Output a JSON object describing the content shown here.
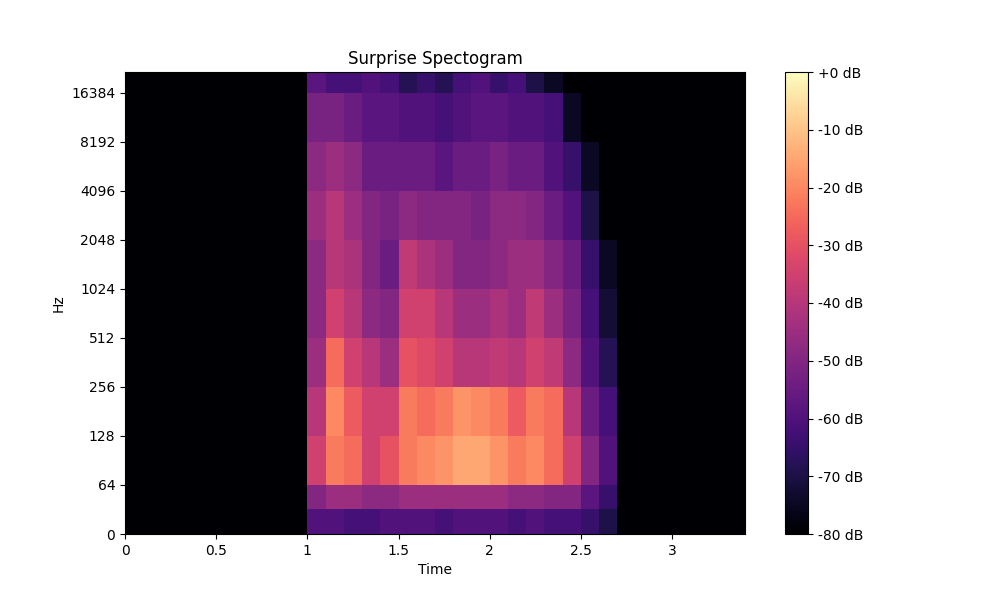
{
  "chart_data": {
    "type": "heatmap",
    "title": "Surprise Spectogram",
    "x_label": "Time",
    "y_label": "Hz",
    "log": "y",
    "x_edges": [
      0,
      1.0,
      1.1,
      1.2,
      1.3,
      1.4,
      1.5,
      1.6,
      1.7,
      1.8,
      1.9,
      2.0,
      2.1,
      2.2,
      2.3,
      2.4,
      2.5,
      2.6,
      2.7,
      2.8,
      3.4
    ],
    "y_edges": [
      0,
      32,
      64,
      128,
      256,
      512,
      1024,
      2048,
      4096,
      8192,
      16384,
      22050
    ],
    "cells": [
      [
        -80,
        -60,
        -60,
        -62,
        -62,
        -60,
        -60,
        -60,
        -62,
        -60,
        -60,
        -60,
        -62,
        -60,
        -62,
        -62,
        -65,
        -70,
        -80,
        -80
      ],
      [
        -80,
        -50,
        -45,
        -45,
        -48,
        -48,
        -45,
        -45,
        -45,
        -45,
        -45,
        -45,
        -48,
        -48,
        -50,
        -50,
        -58,
        -65,
        -80,
        -80
      ],
      [
        -80,
        -35,
        -22,
        -25,
        -35,
        -30,
        -22,
        -20,
        -18,
        -15,
        -15,
        -18,
        -22,
        -20,
        -25,
        -35,
        -50,
        -60,
        -80,
        -80
      ],
      [
        -80,
        -40,
        -20,
        -28,
        -35,
        -35,
        -22,
        -25,
        -22,
        -18,
        -20,
        -22,
        -28,
        -22,
        -25,
        -40,
        -55,
        -62,
        -80,
        -80
      ],
      [
        -80,
        -45,
        -25,
        -35,
        -40,
        -45,
        -30,
        -32,
        -35,
        -40,
        -40,
        -38,
        -40,
        -35,
        -38,
        -48,
        -60,
        -68,
        -80,
        -80
      ],
      [
        -80,
        -48,
        -35,
        -40,
        -48,
        -50,
        -35,
        -35,
        -40,
        -45,
        -45,
        -42,
        -45,
        -38,
        -45,
        -52,
        -62,
        -72,
        -80,
        -80
      ],
      [
        -80,
        -48,
        -40,
        -42,
        -50,
        -55,
        -38,
        -42,
        -45,
        -50,
        -50,
        -48,
        -45,
        -45,
        -50,
        -55,
        -65,
        -75,
        -80,
        -80
      ],
      [
        -80,
        -45,
        -40,
        -45,
        -50,
        -52,
        -48,
        -50,
        -50,
        -50,
        -52,
        -48,
        -48,
        -50,
        -55,
        -60,
        -70,
        -80,
        -80,
        -80
      ],
      [
        -80,
        -48,
        -45,
        -48,
        -55,
        -55,
        -55,
        -55,
        -58,
        -55,
        -55,
        -52,
        -55,
        -55,
        -60,
        -65,
        -75,
        -80,
        -80,
        -80
      ],
      [
        -80,
        -52,
        -52,
        -55,
        -58,
        -58,
        -60,
        -60,
        -62,
        -60,
        -58,
        -58,
        -60,
        -60,
        -62,
        -75,
        -80,
        -80,
        -80,
        -80
      ],
      [
        -80,
        -58,
        -62,
        -62,
        -60,
        -62,
        -68,
        -65,
        -68,
        -62,
        -60,
        -65,
        -62,
        -70,
        -75,
        -80,
        -80,
        -80,
        -80,
        -80
      ]
    ],
    "xlim": [
      0,
      3.4
    ],
    "xticks": [
      0,
      0.5,
      1,
      1.5,
      2,
      2.5,
      3
    ],
    "ylim": [
      0,
      22050
    ],
    "yticks": [
      0,
      64,
      128,
      256,
      512,
      1024,
      2048,
      4096,
      8192,
      16384
    ],
    "colorbar": {
      "range": [
        -80,
        0
      ],
      "ticks": [
        {
          "value": 0,
          "label": "+0 dB"
        },
        {
          "value": -10,
          "label": "-10 dB"
        },
        {
          "value": -20,
          "label": "-20 dB"
        },
        {
          "value": -30,
          "label": "-30 dB"
        },
        {
          "value": -40,
          "label": "-40 dB"
        },
        {
          "value": -50,
          "label": "-50 dB"
        },
        {
          "value": -60,
          "label": "-60 dB"
        },
        {
          "value": -70,
          "label": "-70 dB"
        },
        {
          "value": -80,
          "label": "-80 dB"
        }
      ]
    }
  }
}
